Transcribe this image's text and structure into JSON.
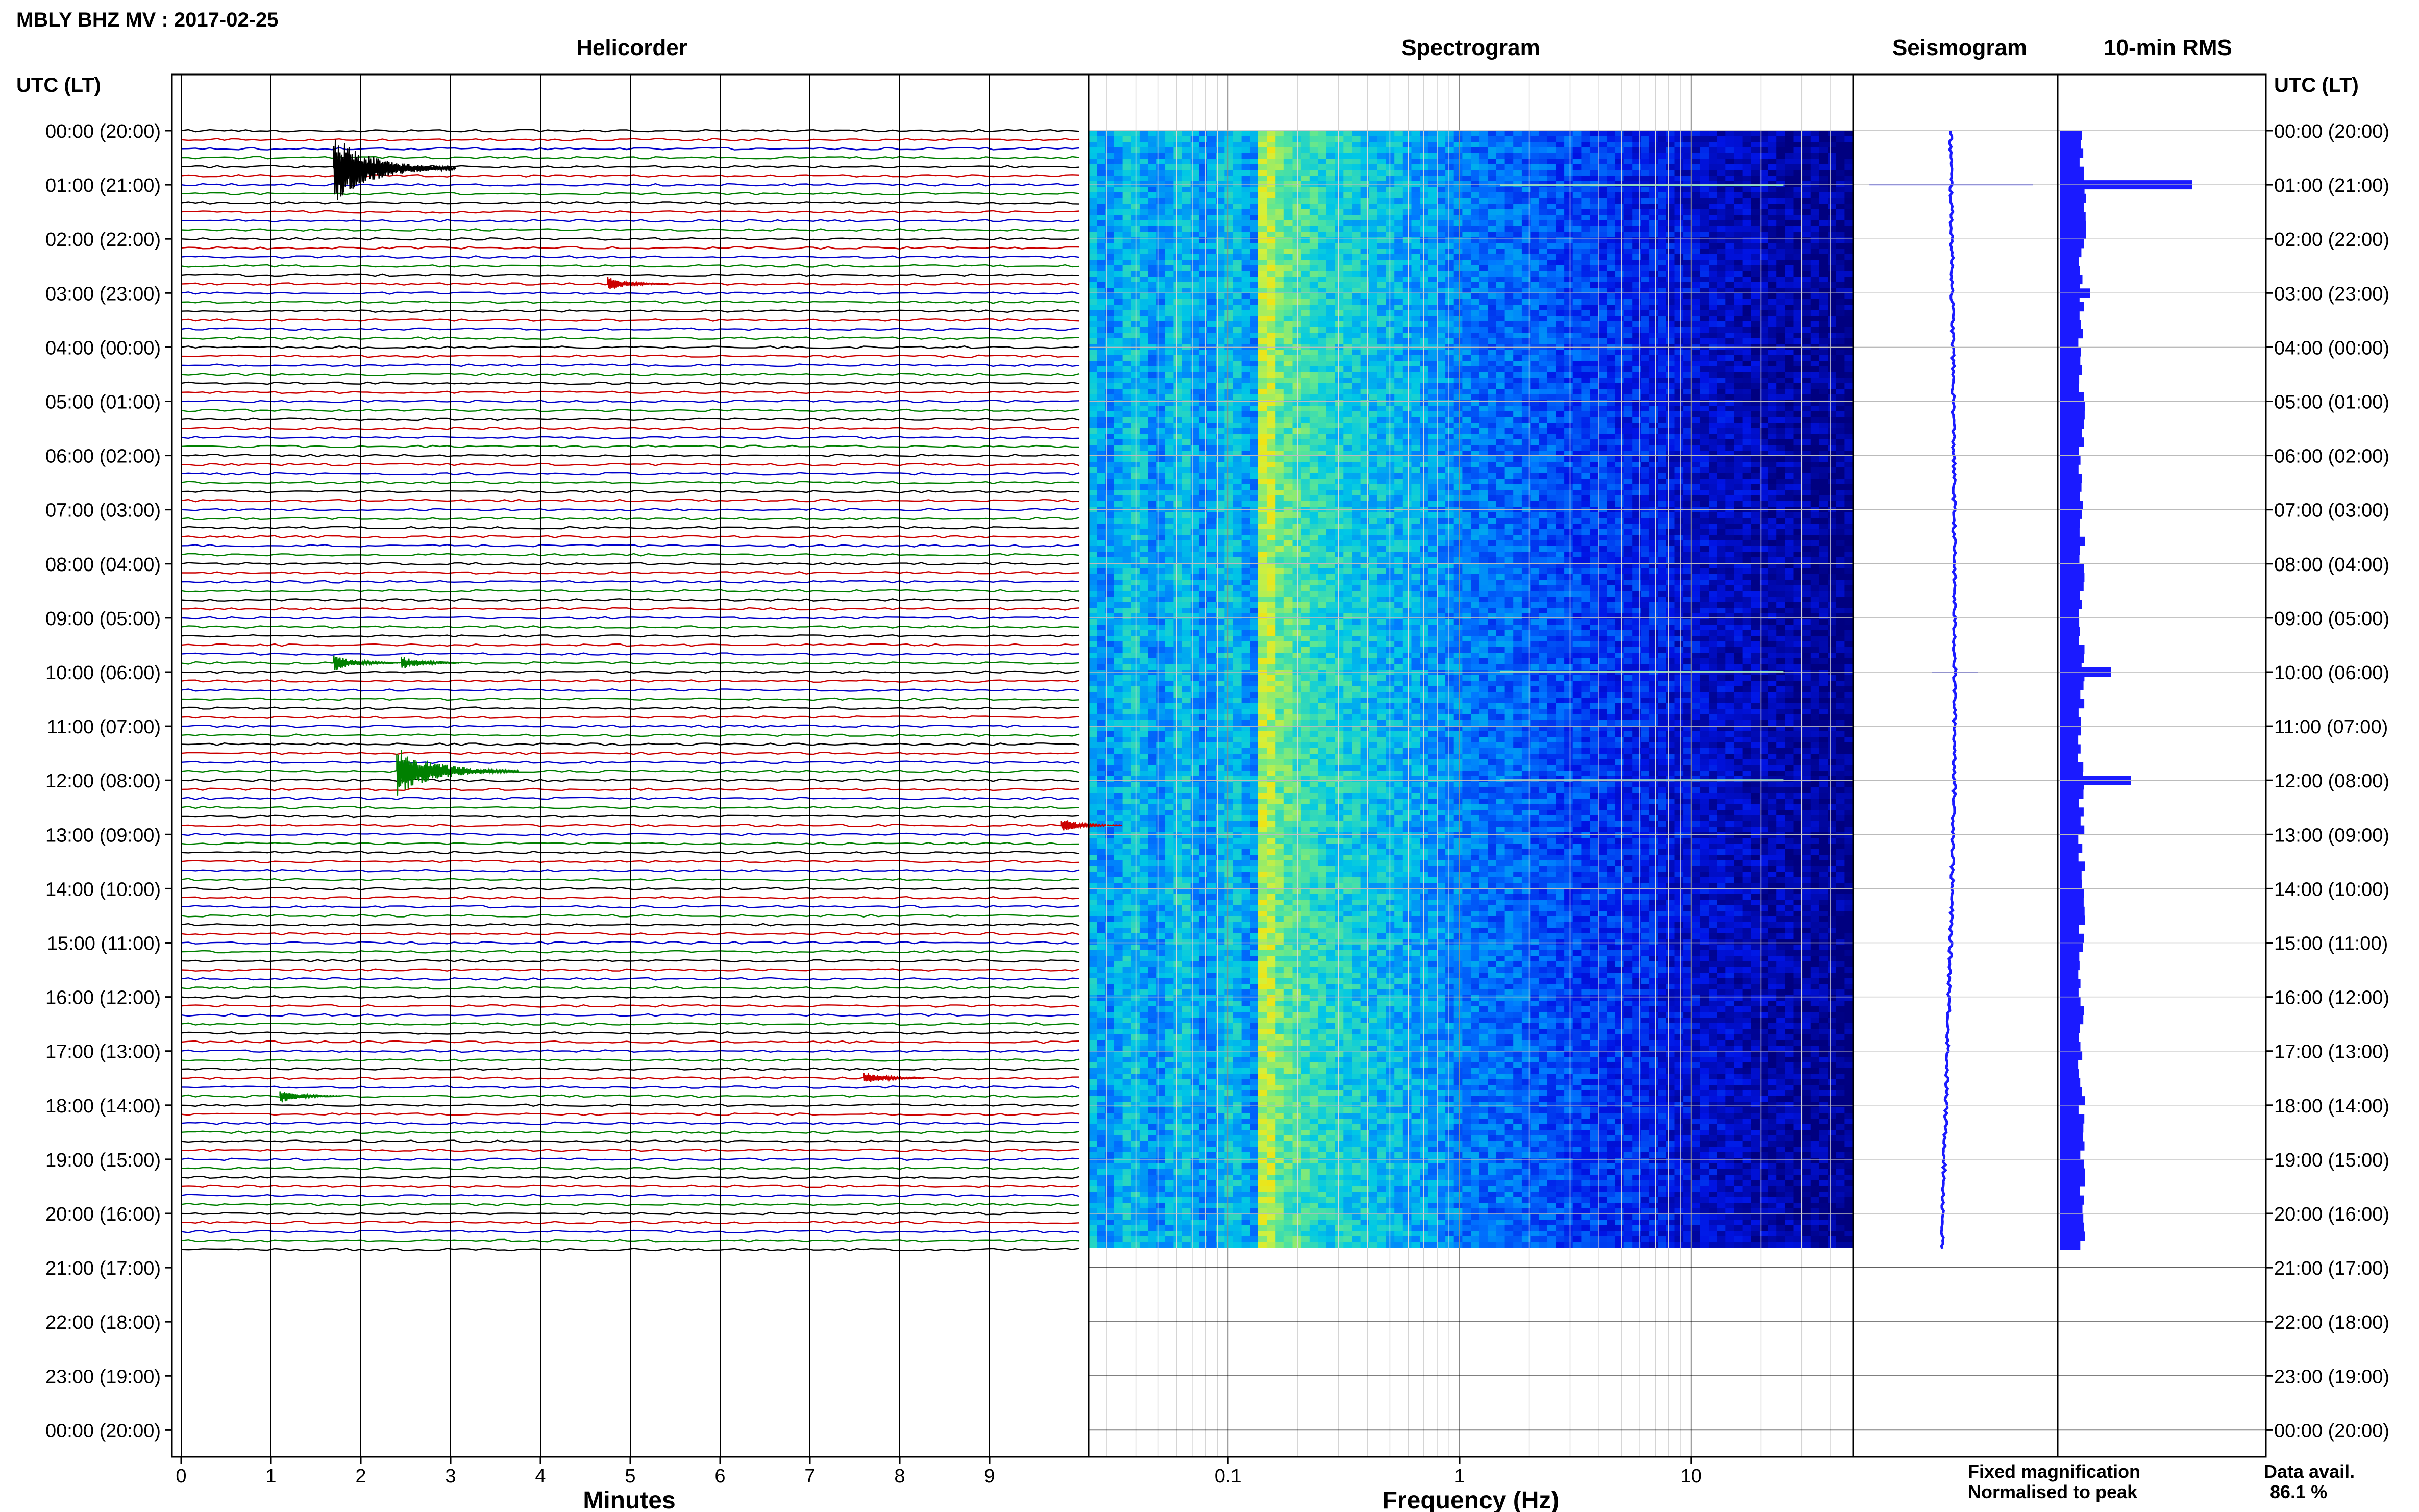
{
  "header": {
    "title": "MBLY BHZ MV : 2017-02-25"
  },
  "panels": {
    "helicorder": "Helicorder",
    "spectrogram": "Spectrogram",
    "seismogram": "Seismogram",
    "rms": "10-min RMS"
  },
  "axis_labels": {
    "left_header": "UTC (LT)",
    "right_header": "UTC (LT)",
    "minutes": "Minutes",
    "frequency": "Frequency (Hz)"
  },
  "legend": {
    "fixed": "Fixed magnification",
    "normalised": "Normalised to peak",
    "fixed_color": "#1a1aff",
    "normalised_color": "#ff2020"
  },
  "data_avail": {
    "label": "Data avail.",
    "value": "86.1 %"
  },
  "chart_data": {
    "type": "helicorder",
    "title": "MBLY BHZ MV : 2017-02-25",
    "hour_labels": [
      "00:00 (20:00)",
      "01:00 (21:00)",
      "02:00 (22:00)",
      "03:00 (23:00)",
      "04:00 (00:00)",
      "05:00 (01:00)",
      "06:00 (02:00)",
      "07:00 (03:00)",
      "08:00 (04:00)",
      "09:00 (05:00)",
      "10:00 (06:00)",
      "11:00 (07:00)",
      "12:00 (08:00)",
      "13:00 (09:00)",
      "14:00 (10:00)",
      "15:00 (11:00)",
      "16:00 (12:00)",
      "17:00 (13:00)",
      "18:00 (14:00)",
      "19:00 (15:00)",
      "20:00 (16:00)",
      "21:00 (17:00)",
      "22:00 (18:00)",
      "23:00 (19:00)",
      "00:00 (20:00)"
    ],
    "minute_ticks": [
      "0",
      "1",
      "2",
      "3",
      "4",
      "5",
      "6",
      "7",
      "8",
      "9"
    ],
    "freq_ticks": [
      {
        "value": 0.1,
        "label": "0.1"
      },
      {
        "value": 1,
        "label": "1"
      },
      {
        "value": 10,
        "label": "10"
      }
    ],
    "freq_range_hz": [
      0.025,
      50
    ],
    "minutes_range": [
      0,
      10
    ],
    "hours_with_data": 20.67,
    "trace_colors": [
      "#000000",
      "#cc0000",
      "#0000cc",
      "#008000"
    ],
    "events": [
      {
        "hour": 0.7,
        "minute": 1.7,
        "amplitude": 5
      },
      {
        "hour": 2.83,
        "minute": 4.75,
        "amplitude": 1
      },
      {
        "hour": 9.83,
        "minute": 1.7,
        "amplitude": 1.2
      },
      {
        "hour": 9.83,
        "minute": 2.45,
        "amplitude": 1
      },
      {
        "hour": 11.83,
        "minute": 2.4,
        "amplitude": 3.5
      },
      {
        "hour": 17.83,
        "minute": 1.1,
        "amplitude": 1
      },
      {
        "hour": 17.5,
        "minute": 7.6,
        "amplitude": 1
      },
      {
        "hour": 12.83,
        "minute": 9.8,
        "amplitude": 1
      }
    ],
    "rms_hourly": [
      1.0,
      1.1,
      1.0,
      1.0,
      1.0,
      1.0,
      1.0,
      1.0,
      1.0,
      1.0,
      1.0,
      1.0,
      1.0,
      1.0,
      1.0,
      1.0,
      1.0,
      1.0,
      1.0,
      1.0,
      1.0
    ],
    "rms_spikes": [
      {
        "hour": 1.0,
        "value": 6.5
      },
      {
        "hour": 10.0,
        "value": 2.5
      },
      {
        "hour": 12.0,
        "value": 3.5
      },
      {
        "hour": 3.0,
        "value": 1.5
      }
    ]
  }
}
